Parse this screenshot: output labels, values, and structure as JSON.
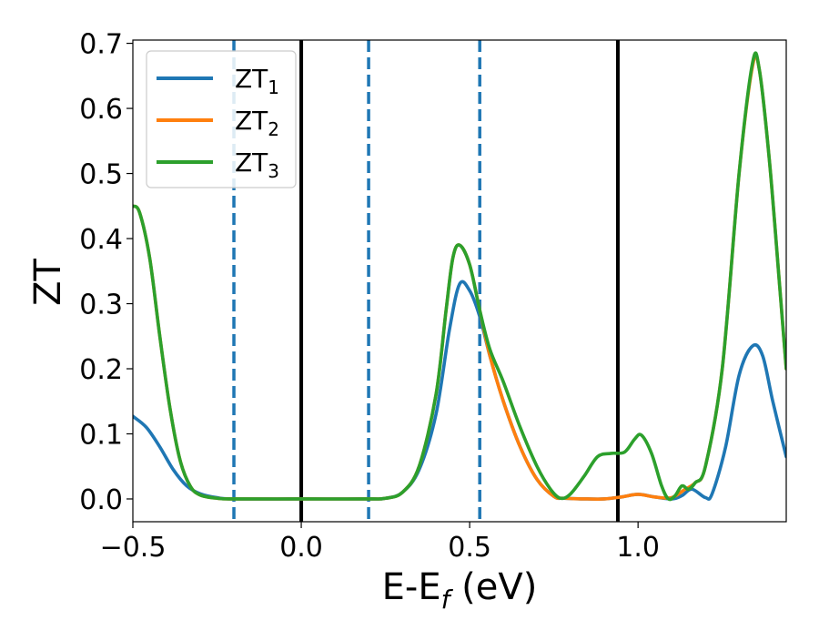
{
  "chart_data": {
    "type": "line",
    "xlabel": "E-E",
    "xlabel_sub": "f",
    "xlabel_unit": " (eV)",
    "ylabel": "ZT",
    "xlim": [
      -0.5,
      1.44
    ],
    "ylim": [
      -0.035,
      0.705
    ],
    "xticks": [
      -0.5,
      0.0,
      0.5,
      1.0
    ],
    "xtick_labels": [
      "−0.5",
      "0.0",
      "0.5",
      "1.0"
    ],
    "yticks": [
      0.0,
      0.1,
      0.2,
      0.3,
      0.4,
      0.5,
      0.6,
      0.7
    ],
    "ytick_labels": [
      "0.0",
      "0.1",
      "0.2",
      "0.3",
      "0.4",
      "0.5",
      "0.6",
      "0.7"
    ],
    "grid": false,
    "legend_position": "top-left",
    "vertical_lines": [
      {
        "x": -0.2,
        "style": "dashed",
        "color": "#1f77b4"
      },
      {
        "x": 0.0,
        "style": "solid",
        "color": "#000000"
      },
      {
        "x": 0.2,
        "style": "dashed",
        "color": "#1f77b4"
      },
      {
        "x": 0.53,
        "style": "dashed",
        "color": "#1f77b4"
      },
      {
        "x": 0.94,
        "style": "solid",
        "color": "#000000"
      }
    ],
    "series": [
      {
        "name": "ZT",
        "sub": "1",
        "color": "#1f77b4",
        "points": [
          [
            -0.5,
            0.127
          ],
          [
            -0.46,
            0.11
          ],
          [
            -0.42,
            0.08
          ],
          [
            -0.38,
            0.045
          ],
          [
            -0.34,
            0.02
          ],
          [
            -0.3,
            0.008
          ],
          [
            -0.25,
            0.002
          ],
          [
            -0.2,
            0.0
          ],
          [
            0.0,
            0.0
          ],
          [
            0.2,
            0.0
          ],
          [
            0.25,
            0.001
          ],
          [
            0.3,
            0.01
          ],
          [
            0.35,
            0.045
          ],
          [
            0.4,
            0.13
          ],
          [
            0.44,
            0.26
          ],
          [
            0.47,
            0.33
          ],
          [
            0.5,
            0.32
          ],
          [
            0.53,
            0.28
          ],
          [
            0.56,
            0.22
          ],
          [
            0.6,
            0.15
          ],
          [
            0.65,
            0.08
          ],
          [
            0.7,
            0.03
          ],
          [
            0.75,
            0.004
          ],
          [
            0.78,
            0.001
          ],
          [
            0.85,
            0.0
          ],
          [
            0.9,
            0.0
          ],
          [
            0.95,
            0.003
          ],
          [
            1.0,
            0.007
          ],
          [
            1.05,
            0.003
          ],
          [
            1.1,
            0.0
          ],
          [
            1.13,
            0.005
          ],
          [
            1.16,
            0.015
          ],
          [
            1.2,
            0.002
          ],
          [
            1.22,
            0.008
          ],
          [
            1.26,
            0.08
          ],
          [
            1.3,
            0.19
          ],
          [
            1.34,
            0.235
          ],
          [
            1.37,
            0.22
          ],
          [
            1.4,
            0.15
          ],
          [
            1.44,
            0.065
          ]
        ]
      },
      {
        "name": "ZT",
        "sub": "2",
        "color": "#ff7f0e",
        "points": [
          [
            -0.5,
            0.45
          ],
          [
            -0.48,
            0.44
          ],
          [
            -0.45,
            0.37
          ],
          [
            -0.42,
            0.25
          ],
          [
            -0.39,
            0.14
          ],
          [
            -0.36,
            0.06
          ],
          [
            -0.33,
            0.02
          ],
          [
            -0.3,
            0.006
          ],
          [
            -0.25,
            0.001
          ],
          [
            -0.2,
            0.0
          ],
          [
            0.0,
            0.0
          ],
          [
            0.2,
            0.0
          ],
          [
            0.25,
            0.001
          ],
          [
            0.3,
            0.01
          ],
          [
            0.35,
            0.05
          ],
          [
            0.4,
            0.16
          ],
          [
            0.43,
            0.29
          ],
          [
            0.45,
            0.37
          ],
          [
            0.47,
            0.39
          ],
          [
            0.5,
            0.36
          ],
          [
            0.53,
            0.29
          ],
          [
            0.56,
            0.22
          ],
          [
            0.6,
            0.15
          ],
          [
            0.65,
            0.08
          ],
          [
            0.7,
            0.03
          ],
          [
            0.75,
            0.004
          ],
          [
            0.78,
            0.001
          ],
          [
            0.85,
            0.0
          ],
          [
            0.9,
            0.0
          ],
          [
            0.95,
            0.003
          ],
          [
            1.0,
            0.007
          ],
          [
            1.05,
            0.003
          ],
          [
            1.1,
            0.002
          ],
          [
            1.14,
            0.015
          ],
          [
            1.17,
            0.025
          ],
          [
            1.2,
            0.05
          ],
          [
            1.25,
            0.2
          ],
          [
            1.3,
            0.5
          ],
          [
            1.34,
            0.665
          ],
          [
            1.36,
            0.66
          ],
          [
            1.39,
            0.52
          ],
          [
            1.42,
            0.33
          ],
          [
            1.44,
            0.2
          ]
        ]
      },
      {
        "name": "ZT",
        "sub": "3",
        "color": "#2ca02c",
        "points": [
          [
            -0.5,
            0.45
          ],
          [
            -0.48,
            0.44
          ],
          [
            -0.45,
            0.37
          ],
          [
            -0.42,
            0.25
          ],
          [
            -0.39,
            0.14
          ],
          [
            -0.36,
            0.06
          ],
          [
            -0.33,
            0.02
          ],
          [
            -0.3,
            0.006
          ],
          [
            -0.25,
            0.001
          ],
          [
            -0.2,
            0.0
          ],
          [
            0.0,
            0.0
          ],
          [
            0.2,
            0.0
          ],
          [
            0.25,
            0.001
          ],
          [
            0.3,
            0.01
          ],
          [
            0.35,
            0.05
          ],
          [
            0.4,
            0.16
          ],
          [
            0.43,
            0.29
          ],
          [
            0.45,
            0.37
          ],
          [
            0.47,
            0.39
          ],
          [
            0.5,
            0.36
          ],
          [
            0.53,
            0.29
          ],
          [
            0.56,
            0.23
          ],
          [
            0.6,
            0.18
          ],
          [
            0.65,
            0.11
          ],
          [
            0.7,
            0.05
          ],
          [
            0.74,
            0.015
          ],
          [
            0.77,
            0.001
          ],
          [
            0.8,
            0.008
          ],
          [
            0.84,
            0.035
          ],
          [
            0.88,
            0.065
          ],
          [
            0.92,
            0.07
          ],
          [
            0.96,
            0.072
          ],
          [
            0.99,
            0.092
          ],
          [
            1.01,
            0.098
          ],
          [
            1.04,
            0.07
          ],
          [
            1.07,
            0.02
          ],
          [
            1.09,
            0.0
          ],
          [
            1.11,
            0.005
          ],
          [
            1.13,
            0.02
          ],
          [
            1.15,
            0.015
          ],
          [
            1.17,
            0.025
          ],
          [
            1.2,
            0.05
          ],
          [
            1.25,
            0.2
          ],
          [
            1.3,
            0.5
          ],
          [
            1.34,
            0.67
          ],
          [
            1.36,
            0.66
          ],
          [
            1.39,
            0.52
          ],
          [
            1.42,
            0.33
          ],
          [
            1.44,
            0.2
          ]
        ]
      }
    ]
  }
}
